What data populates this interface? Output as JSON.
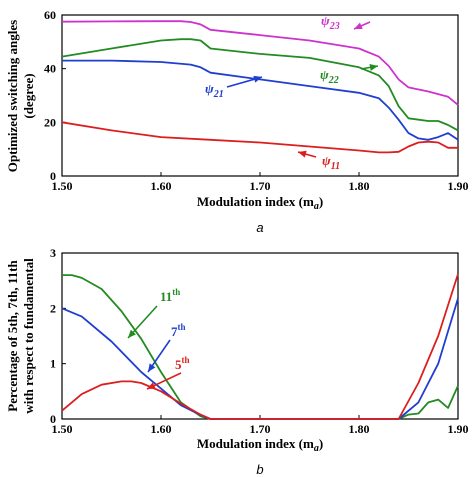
{
  "chart_data": [
    {
      "type": "line",
      "panel_label": "a",
      "xlabel": "Modulation index (m",
      "xlabel_sub": "a",
      "xlabel_end": ")",
      "ylabel_line1": "Optimized switching angles",
      "ylabel_line2": "(degree)",
      "xlim": [
        1.5,
        1.9
      ],
      "ylim": [
        0,
        60
      ],
      "xticks": [
        "1.50",
        "1.60",
        "1.70",
        "1.80",
        "1.90"
      ],
      "yticks": [
        "0",
        "20",
        "40",
        "60"
      ],
      "grid": false,
      "series": [
        {
          "name": "ψ23",
          "label_main": "ψ",
          "label_sub": "23",
          "color": "#cc33cc",
          "x": [
            1.5,
            1.55,
            1.6,
            1.62,
            1.63,
            1.64,
            1.65,
            1.7,
            1.75,
            1.8,
            1.82,
            1.83,
            1.84,
            1.85,
            1.87,
            1.89,
            1.9
          ],
          "y": [
            57.5,
            57.6,
            57.7,
            57.7,
            57.4,
            56.5,
            54.5,
            52.5,
            50.5,
            47.5,
            44.5,
            41,
            36,
            33,
            31.5,
            29.5,
            26.5
          ]
        },
        {
          "name": "ψ22",
          "label_main": "ψ",
          "label_sub": "22",
          "color": "#228b22",
          "x": [
            1.5,
            1.55,
            1.6,
            1.62,
            1.63,
            1.64,
            1.65,
            1.7,
            1.75,
            1.8,
            1.82,
            1.83,
            1.84,
            1.85,
            1.87,
            1.88,
            1.89,
            1.9
          ],
          "y": [
            44.5,
            47.5,
            50.5,
            51,
            51,
            50.5,
            47.5,
            45.5,
            44,
            40.5,
            37.5,
            33.5,
            26,
            21.5,
            20.5,
            20.5,
            19,
            17
          ]
        },
        {
          "name": "ψ21",
          "label_main": "ψ",
          "label_sub": "21",
          "color": "#1f3fcf",
          "x": [
            1.5,
            1.55,
            1.6,
            1.63,
            1.64,
            1.65,
            1.7,
            1.75,
            1.8,
            1.82,
            1.83,
            1.84,
            1.85,
            1.86,
            1.87,
            1.88,
            1.89,
            1.9
          ],
          "y": [
            43,
            43,
            42.5,
            41.5,
            40.5,
            38.5,
            36,
            33.5,
            31,
            29,
            25.5,
            21,
            16,
            14,
            13.5,
            14.5,
            16,
            13.5
          ]
        },
        {
          "name": "ψ11",
          "label_main": "ψ",
          "label_sub": "11",
          "color": "#dd1e1e",
          "x": [
            1.5,
            1.55,
            1.6,
            1.65,
            1.7,
            1.75,
            1.8,
            1.82,
            1.83,
            1.84,
            1.85,
            1.86,
            1.87,
            1.88,
            1.89,
            1.9
          ],
          "y": [
            20,
            17,
            14.5,
            13.5,
            12.5,
            11,
            9.5,
            8.8,
            8.8,
            9,
            11,
            12.5,
            12.8,
            12.5,
            10.5,
            10.5
          ]
        }
      ]
    },
    {
      "type": "line",
      "panel_label": "b",
      "xlabel": "Modulation index (m",
      "xlabel_sub": "a",
      "xlabel_end": ")",
      "ylabel_line1": "Percentage of 5th, 7th, 11th",
      "ylabel_line2": "with respect to fundamental",
      "xlim": [
        1.5,
        1.9
      ],
      "ylim": [
        0,
        3
      ],
      "xticks": [
        "1.50",
        "1.60",
        "1.70",
        "1.80",
        "1.90"
      ],
      "yticks": [
        "0",
        "1",
        "2",
        "3"
      ],
      "grid": false,
      "series": [
        {
          "name": "11th",
          "label_main": "11",
          "label_sub": "th",
          "color": "#228b22",
          "x": [
            1.5,
            1.51,
            1.52,
            1.54,
            1.56,
            1.58,
            1.6,
            1.62,
            1.64,
            1.65,
            1.7,
            1.8,
            1.84,
            1.85,
            1.86,
            1.87,
            1.88,
            1.89,
            1.9
          ],
          "y": [
            2.6,
            2.6,
            2.55,
            2.35,
            1.95,
            1.45,
            0.85,
            0.3,
            0.05,
            0.0,
            0.0,
            0.0,
            0.0,
            0.08,
            0.1,
            0.3,
            0.35,
            0.2,
            0.6
          ]
        },
        {
          "name": "7th",
          "label_main": "7",
          "label_sub": "th",
          "color": "#1f3fcf",
          "x": [
            1.5,
            1.52,
            1.55,
            1.58,
            1.6,
            1.62,
            1.64,
            1.65,
            1.7,
            1.8,
            1.84,
            1.86,
            1.88,
            1.9
          ],
          "y": [
            2.0,
            1.85,
            1.4,
            0.85,
            0.55,
            0.25,
            0.07,
            0.0,
            0.0,
            0.0,
            0.0,
            0.3,
            1.0,
            2.18
          ]
        },
        {
          "name": "5th",
          "label_main": "5",
          "label_sub": "th",
          "color": "#dd1e1e",
          "x": [
            1.5,
            1.52,
            1.54,
            1.56,
            1.57,
            1.58,
            1.6,
            1.62,
            1.64,
            1.65,
            1.7,
            1.8,
            1.84,
            1.86,
            1.88,
            1.9
          ],
          "y": [
            0.15,
            0.45,
            0.62,
            0.68,
            0.68,
            0.65,
            0.5,
            0.28,
            0.08,
            0.0,
            0.0,
            0.0,
            0.0,
            0.65,
            1.5,
            2.62
          ]
        }
      ]
    }
  ]
}
